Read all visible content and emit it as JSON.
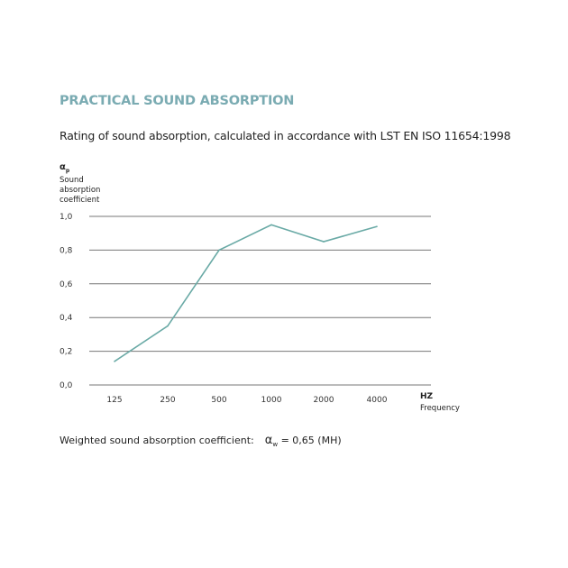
{
  "chart_data": {
    "type": "line",
    "title": "PRACTICAL SOUND ABSORPTION",
    "subtitle": "Rating of sound absorption, calculated in accordance with LST EN ISO 11654:1998",
    "ylabel_symbol": "α",
    "ylabel_symbol_sub": "p",
    "ylabel": "Sound absorption coefficient",
    "xlabel_unit": "HZ",
    "xlabel": "Frequency",
    "categories": [
      "125",
      "250",
      "500",
      "1000",
      "2000",
      "4000"
    ],
    "values": [
      0.14,
      0.35,
      0.8,
      0.95,
      0.85,
      0.94
    ],
    "ylim": [
      0,
      1.0
    ],
    "yticks": [
      0.0,
      0.2,
      0.4,
      0.6,
      0.8,
      1.0
    ],
    "ytick_labels": [
      "0,0",
      "0,2",
      "0,4",
      "0,6",
      "0,8",
      "1,0"
    ],
    "grid": true,
    "line_color": "#6aaaa6",
    "title_color": "#7aabb2"
  },
  "footer": {
    "label": "Weighted sound absorption coefficient:",
    "symbol": "α",
    "symbol_sub": "w",
    "value": "= 0,65 (MH)"
  }
}
